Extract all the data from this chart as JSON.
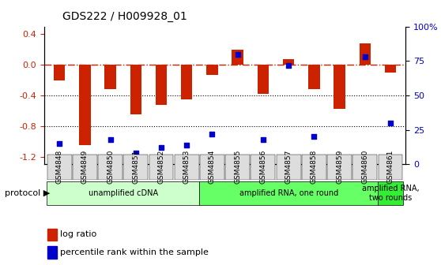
{
  "title": "GDS222 / H009928_01",
  "samples": [
    "GSM4848",
    "GSM4849",
    "GSM4850",
    "GSM4851",
    "GSM4852",
    "GSM4853",
    "GSM4854",
    "GSM4855",
    "GSM4856",
    "GSM4857",
    "GSM4858",
    "GSM4859",
    "GSM4860",
    "GSM4861"
  ],
  "log_ratio": [
    -0.2,
    -1.05,
    -0.32,
    -0.65,
    -0.52,
    -0.45,
    -0.13,
    0.2,
    -0.38,
    0.07,
    -0.32,
    -0.58,
    0.28,
    -0.1
  ],
  "percentile_rank": [
    15,
    5,
    18,
    8,
    12,
    14,
    22,
    80,
    18,
    72,
    20,
    3,
    78,
    30
  ],
  "bar_color": "#cc2200",
  "dot_color": "#0000cc",
  "ylim_left": [
    -1.3,
    0.5
  ],
  "ylim_right": [
    0,
    100
  ],
  "yticks_left": [
    -1.2,
    -0.8,
    -0.4,
    0.0,
    0.4
  ],
  "yticks_right": [
    0,
    25,
    50,
    75,
    100
  ],
  "ytick_labels_right": [
    "0",
    "25",
    "50",
    "75",
    "100%"
  ],
  "hline_y": 0.0,
  "dotted_lines": [
    -0.4,
    -0.8
  ],
  "protocols": [
    {
      "label": "unamplified cDNA",
      "start": 0,
      "end": 5,
      "color": "#ccffcc"
    },
    {
      "label": "amplified RNA, one round",
      "start": 6,
      "end": 12,
      "color": "#66ff66"
    },
    {
      "label": "amplified RNA,\ntwo rounds",
      "start": 13,
      "end": 13,
      "color": "#33ee33"
    }
  ],
  "protocol_label": "protocol",
  "legend_items": [
    {
      "color": "#cc2200",
      "label": "log ratio"
    },
    {
      "color": "#0000cc",
      "label": "percentile rank within the sample"
    }
  ],
  "background_color": "#ffffff",
  "plot_bg_color": "#ffffff"
}
